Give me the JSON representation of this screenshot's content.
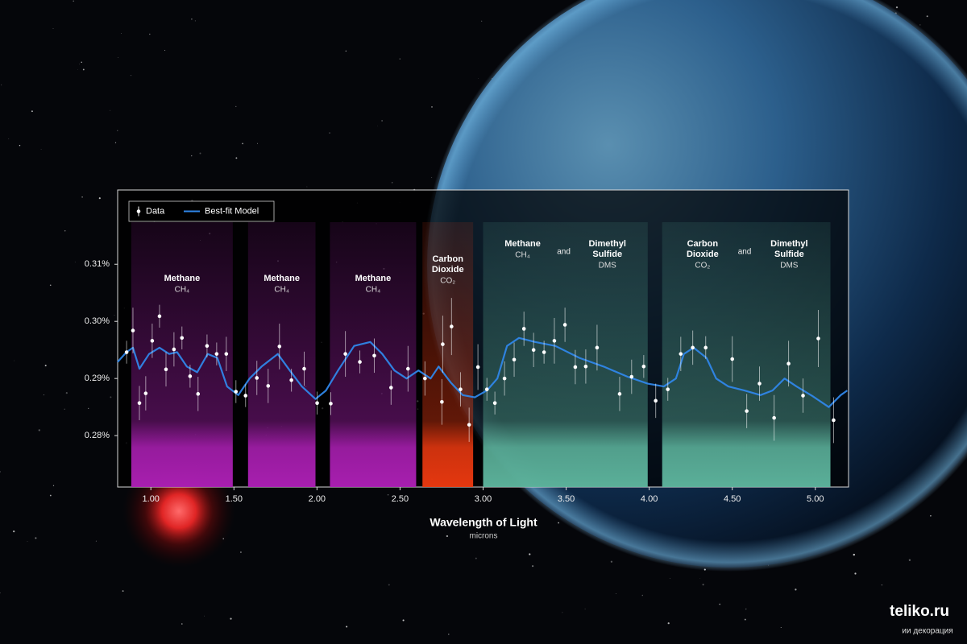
{
  "chart_data": {
    "type": "line",
    "xlabel": "Wavelength of Light",
    "xlabel_sub": "microns",
    "xlim": [
      0.8,
      5.2
    ],
    "xticks": [
      {
        "value": 1,
        "label": "1.00"
      },
      {
        "value": 1.5,
        "label": "1.50"
      },
      {
        "value": 2,
        "label": "2.00"
      },
      {
        "value": 2.5,
        "label": "2.50"
      },
      {
        "value": 3,
        "label": "3.00"
      },
      {
        "value": 3.5,
        "label": "3.50"
      },
      {
        "value": 4,
        "label": "4.00"
      },
      {
        "value": 4.5,
        "label": "4.50"
      },
      {
        "value": 5,
        "label": "5.00"
      }
    ],
    "ylim": [
      0.271,
      0.323
    ],
    "yticks": [
      {
        "value": 0.28,
        "label": "0.28%"
      },
      {
        "value": 0.29,
        "label": "0.29%"
      },
      {
        "value": 0.3,
        "label": "0.30%"
      },
      {
        "value": 0.31,
        "label": "0.31%"
      }
    ],
    "legend": "top-left",
    "bands": [
      {
        "range": [
          0.882,
          1.493
        ],
        "color": "#b020b8",
        "labels": [
          {
            "name": "Methane",
            "formula": "CH₄"
          }
        ]
      },
      {
        "range": [
          1.585,
          1.991
        ],
        "color": "#b020b8",
        "labels": [
          {
            "name": "Methane",
            "formula": "CH₄"
          }
        ]
      },
      {
        "range": [
          2.078,
          2.597
        ],
        "color": "#b020b8",
        "labels": [
          {
            "name": "Methane",
            "formula": "CH₄"
          }
        ]
      },
      {
        "range": [
          2.635,
          2.94
        ],
        "color": "#f03a10",
        "labels": [
          {
            "name": "Carbon Dioxide",
            "formula": "CO₂"
          }
        ]
      },
      {
        "range": [
          3.0,
          3.991
        ],
        "color": "#5fb8a0",
        "joiner": "and",
        "labels": [
          {
            "name": "Methane",
            "formula": "CH₄"
          },
          {
            "name": "Dimethyl Sulfide",
            "formula": "DMS"
          }
        ]
      },
      {
        "range": [
          4.078,
          5.091
        ],
        "color": "#5fb8a0",
        "joiner": "and",
        "labels": [
          {
            "name": "Carbon Dioxide",
            "formula": "CO₂"
          },
          {
            "name": "Dimethyl Sulfide",
            "formula": "DMS"
          }
        ]
      }
    ],
    "series": [
      {
        "name": "Data",
        "type": "errorbar",
        "color": "#ffffff",
        "x": [
          0.854,
          0.892,
          0.931,
          0.969,
          1.008,
          1.052,
          1.091,
          1.139,
          1.187,
          1.236,
          1.284,
          1.338,
          1.396,
          1.454,
          1.512,
          1.57,
          1.638,
          1.706,
          1.774,
          1.846,
          1.923,
          2.001,
          2.083,
          2.171,
          2.258,
          2.345,
          2.446,
          2.548,
          2.65,
          2.752,
          2.757,
          2.81,
          2.864,
          2.916,
          2.969,
          3.023,
          3.071,
          3.129,
          3.187,
          3.246,
          3.304,
          3.367,
          3.429,
          3.493,
          3.555,
          3.618,
          3.686,
          3.822,
          3.894,
          3.967,
          4.039,
          4.112,
          4.19,
          4.262,
          4.34,
          4.5,
          4.587,
          4.664,
          4.752,
          4.839,
          4.926,
          5.018,
          5.11
        ],
        "values": [
          0.2946,
          0.2984,
          0.2857,
          0.2874,
          0.2966,
          0.3009,
          0.2916,
          0.2951,
          0.2971,
          0.2904,
          0.2873,
          0.2957,
          0.2943,
          0.2943,
          0.2877,
          0.287,
          0.2901,
          0.2887,
          0.2956,
          0.2897,
          0.2917,
          0.2857,
          0.2856,
          0.2943,
          0.2929,
          0.294,
          0.2884,
          0.2917,
          0.29,
          0.2859,
          0.296,
          0.2991,
          0.2881,
          0.2819,
          0.292,
          0.2881,
          0.2857,
          0.29,
          0.2933,
          0.2987,
          0.295,
          0.2946,
          0.2966,
          0.2994,
          0.292,
          0.2921,
          0.2954,
          0.2873,
          0.2903,
          0.2921,
          0.2861,
          0.2881,
          0.2943,
          0.2954,
          0.2954,
          0.2934,
          0.2843,
          0.2891,
          0.2831,
          0.2926,
          0.287,
          0.297,
          0.2827
        ],
        "errors": [
          0.002,
          0.004,
          0.003,
          0.003,
          0.003,
          0.002,
          0.003,
          0.003,
          0.002,
          0.002,
          0.003,
          0.002,
          0.002,
          0.003,
          0.002,
          0.002,
          0.003,
          0.003,
          0.004,
          0.002,
          0.003,
          0.002,
          0.002,
          0.004,
          0.002,
          0.003,
          0.003,
          0.004,
          0.003,
          0.004,
          0.005,
          0.005,
          0.003,
          0.003,
          0.004,
          0.002,
          0.002,
          0.003,
          0.003,
          0.003,
          0.003,
          0.002,
          0.004,
          0.003,
          0.003,
          0.003,
          0.004,
          0.003,
          0.003,
          0.002,
          0.003,
          0.002,
          0.003,
          0.003,
          0.002,
          0.004,
          0.003,
          0.003,
          0.004,
          0.004,
          0.003,
          0.005,
          0.004
        ]
      },
      {
        "name": "Best-fit Model",
        "type": "line",
        "color": "#2f86e8",
        "x": [
          0.8,
          0.853,
          0.892,
          0.931,
          0.989,
          1.052,
          1.11,
          1.158,
          1.216,
          1.279,
          1.342,
          1.4,
          1.459,
          1.526,
          1.594,
          1.667,
          1.764,
          1.836,
          1.909,
          1.991,
          2.054,
          2.127,
          2.224,
          2.321,
          2.393,
          2.466,
          2.539,
          2.611,
          2.684,
          2.732,
          2.805,
          2.877,
          2.95,
          3.023,
          3.086,
          3.144,
          3.216,
          3.313,
          3.434,
          3.58,
          3.725,
          3.87,
          3.991,
          4.088,
          4.161,
          4.209,
          4.267,
          4.345,
          4.403,
          4.476,
          4.573,
          4.67,
          4.742,
          4.815,
          4.887,
          4.984,
          5.081,
          5.153,
          5.192
        ],
        "values": [
          0.2929,
          0.2946,
          0.2954,
          0.2917,
          0.2943,
          0.2954,
          0.2943,
          0.2946,
          0.2921,
          0.2911,
          0.2943,
          0.2936,
          0.2886,
          0.2871,
          0.29,
          0.2921,
          0.2943,
          0.2914,
          0.2886,
          0.2864,
          0.2879,
          0.2914,
          0.2957,
          0.2964,
          0.2943,
          0.2914,
          0.29,
          0.2914,
          0.29,
          0.2921,
          0.2893,
          0.2871,
          0.2867,
          0.2879,
          0.29,
          0.2957,
          0.2971,
          0.2964,
          0.2957,
          0.2936,
          0.2921,
          0.2903,
          0.2891,
          0.2886,
          0.29,
          0.2943,
          0.2954,
          0.2936,
          0.29,
          0.2886,
          0.2879,
          0.2871,
          0.2879,
          0.29,
          0.2886,
          0.2869,
          0.285,
          0.2871,
          0.2879
        ]
      }
    ]
  },
  "watermark": {
    "title": "teliko.ru",
    "subtitle": "ии декорация"
  }
}
